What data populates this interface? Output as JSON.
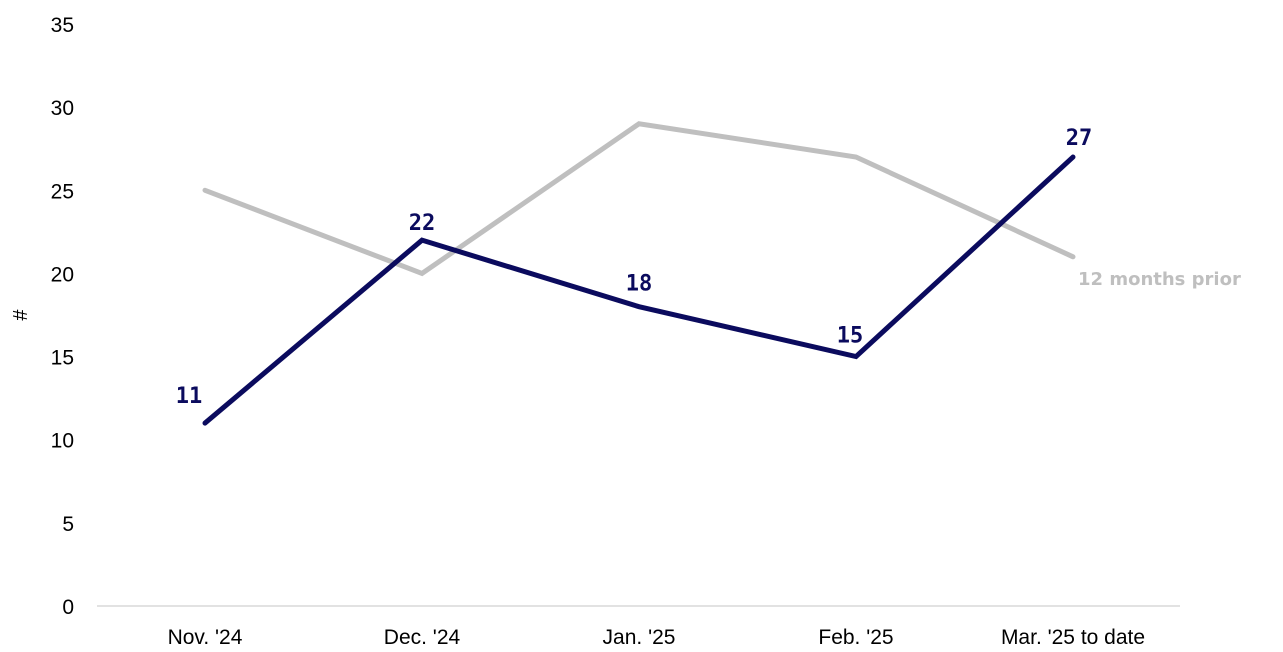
{
  "chart_data": {
    "type": "line",
    "categories": [
      "Nov. '24",
      "Dec. '24",
      "Jan. '25",
      "Feb. '25",
      "Mar. '25 to date"
    ],
    "series": [
      {
        "values": [
          11,
          22,
          18,
          15,
          27
        ],
        "color": "#0b0b5e",
        "data_labels": true
      },
      {
        "name": "12 months prior",
        "values": [
          25,
          20,
          29,
          27,
          21
        ],
        "color": "#bfbfbf",
        "data_labels": false
      }
    ],
    "ylabel": "#",
    "xlabel": "",
    "title": "",
    "ylim": [
      0,
      35
    ],
    "yticks": [
      0,
      5,
      10,
      15,
      20,
      25,
      30,
      35
    ],
    "grid": false,
    "legend": "end-of-line label"
  }
}
